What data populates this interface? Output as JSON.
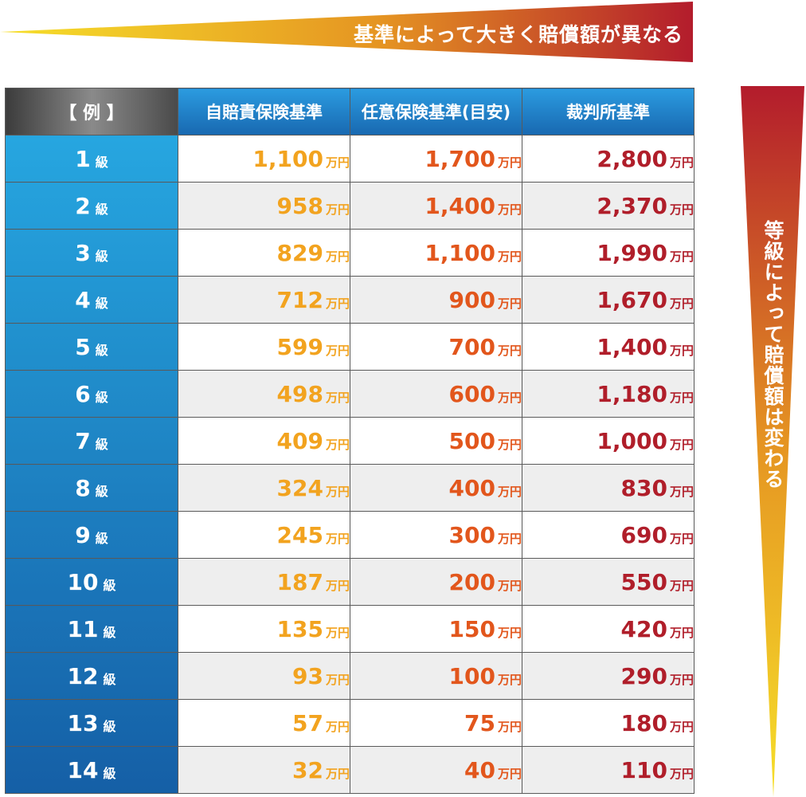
{
  "banner": {
    "top_text": "基準によって大きく賠償額が異なる",
    "side_text": "等級によって賠償額は変わる"
  },
  "colors": {
    "wedge_start": "#f6df2a",
    "wedge_mid": "#e07f21",
    "wedge_end": "#b31c2c",
    "grade_light": "#26a6e0",
    "grade_dark": "#155fa6",
    "col1": "#f2a31f",
    "col2": "#e2561c",
    "col3": "#b01e2a"
  },
  "table": {
    "headers": [
      "【 例 】",
      "自賠責保険基準",
      "任意保険基準(目安)",
      "裁判所基準"
    ],
    "unit": "万円",
    "grade_suffix": "級",
    "rows": [
      {
        "grade": "1",
        "jibaiseki": "1,100",
        "nini": "1,700",
        "saibansho": "2,800"
      },
      {
        "grade": "2",
        "jibaiseki": "958",
        "nini": "1,400",
        "saibansho": "2,370"
      },
      {
        "grade": "3",
        "jibaiseki": "829",
        "nini": "1,100",
        "saibansho": "1,990"
      },
      {
        "grade": "4",
        "jibaiseki": "712",
        "nini": "900",
        "saibansho": "1,670"
      },
      {
        "grade": "5",
        "jibaiseki": "599",
        "nini": "700",
        "saibansho": "1,400"
      },
      {
        "grade": "6",
        "jibaiseki": "498",
        "nini": "600",
        "saibansho": "1,180"
      },
      {
        "grade": "7",
        "jibaiseki": "409",
        "nini": "500",
        "saibansho": "1,000"
      },
      {
        "grade": "8",
        "jibaiseki": "324",
        "nini": "400",
        "saibansho": "830"
      },
      {
        "grade": "9",
        "jibaiseki": "245",
        "nini": "300",
        "saibansho": "690"
      },
      {
        "grade": "10",
        "jibaiseki": "187",
        "nini": "200",
        "saibansho": "550"
      },
      {
        "grade": "11",
        "jibaiseki": "135",
        "nini": "150",
        "saibansho": "420"
      },
      {
        "grade": "12",
        "jibaiseki": "93",
        "nini": "100",
        "saibansho": "290"
      },
      {
        "grade": "13",
        "jibaiseki": "57",
        "nini": "75",
        "saibansho": "180"
      },
      {
        "grade": "14",
        "jibaiseki": "32",
        "nini": "40",
        "saibansho": "110"
      }
    ]
  }
}
